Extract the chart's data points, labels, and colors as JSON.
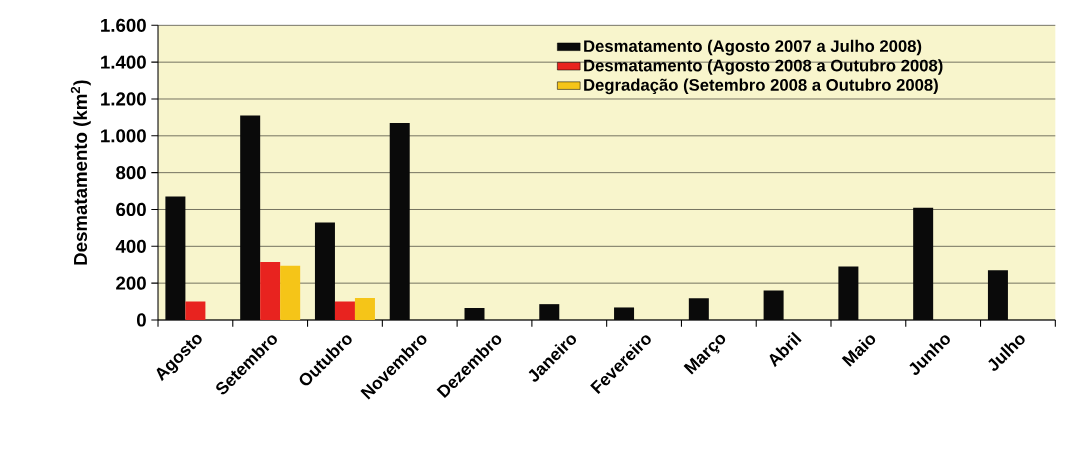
{
  "chart_data": {
    "type": "bar",
    "ylabel": "Desmatamento (km$^{2}$)",
    "categories": [
      "Agosto",
      "Setembro",
      "Outubro",
      "Novembro",
      "Dezembro",
      "Janeiro",
      "Fevereiro",
      "Março",
      "Abril",
      "Maio",
      "Junho",
      "Julho"
    ],
    "series": [
      {
        "name": "Desmatamento (Agosto 2007 a Julho 2008)",
        "color": "#0a0a0a",
        "values": [
          670,
          1110,
          530,
          1070,
          65,
          86,
          68,
          118,
          160,
          290,
          610,
          270
        ]
      },
      {
        "name": "Desmatamento (Agosto 2008 a Outubro 2008)",
        "color": "#e8231f",
        "values": [
          100,
          315,
          100,
          null,
          null,
          null,
          null,
          null,
          null,
          null,
          null,
          null
        ]
      },
      {
        "name": "Degradação (Setembro 2008 a Outubro 2008)",
        "color": "#f5c518",
        "values": [
          null,
          295,
          120,
          null,
          null,
          null,
          null,
          null,
          null,
          null,
          null,
          null
        ]
      }
    ],
    "ylim": [
      0,
      1600
    ],
    "yticks": [
      0,
      200,
      400,
      600,
      800,
      {
        "value": 1000,
        "label": "1.000"
      },
      {
        "value": 1200,
        "label": "1.200"
      },
      {
        "value": 1400,
        "label": "1.400"
      },
      {
        "value": 1600,
        "label": "1.600"
      }
    ],
    "grid": "y",
    "legend": "top right"
  }
}
